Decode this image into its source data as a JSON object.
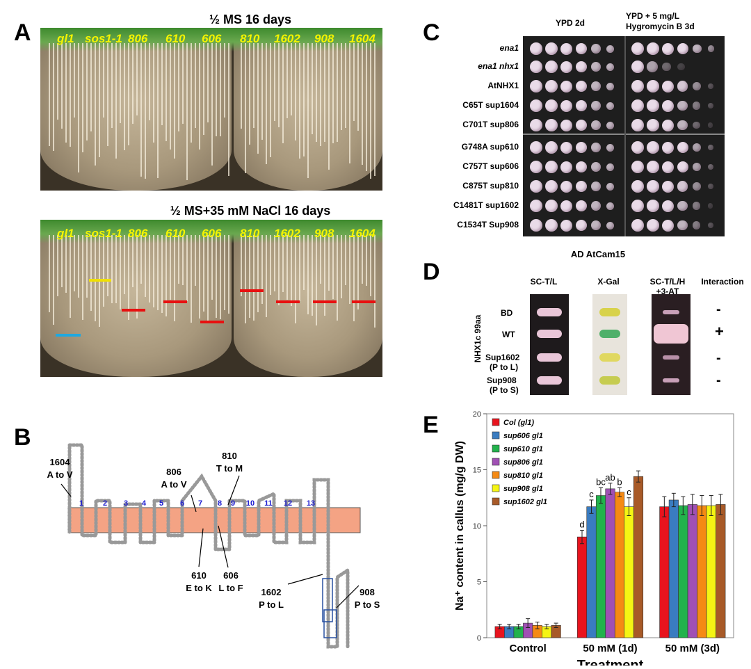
{
  "panelA": {
    "letter": "A",
    "title_top": "½ MS 16 days",
    "title_bottom": "½ MS+35 mM NaCl 16 days",
    "genotypes_left": [
      "gl1",
      "sos1-1",
      "806",
      "610",
      "606"
    ],
    "genotypes_right": [
      "810",
      "1602",
      "908",
      "1604"
    ],
    "bar_colors": {
      "yellow": "#f0e000",
      "red": "#e81010",
      "blue": "#1ea8e0"
    }
  },
  "panelB": {
    "letter": "B",
    "tm_numbers": [
      "1",
      "2",
      "3",
      "4",
      "5",
      "6",
      "7",
      "8",
      "9",
      "10",
      "11",
      "12",
      "13"
    ],
    "mutations": [
      {
        "id": "1604",
        "change": "A to V"
      },
      {
        "id": "806",
        "change": "A to V"
      },
      {
        "id": "810",
        "change": "T to M"
      },
      {
        "id": "610",
        "change": "E to K"
      },
      {
        "id": "606",
        "change": "L to F"
      },
      {
        "id": "1602",
        "change": "P to L"
      },
      {
        "id": "908",
        "change": "P to S"
      }
    ],
    "membrane_color": "#f4a384"
  },
  "panelC": {
    "letter": "C",
    "col1": "YPD 2d",
    "col2_line1": "YPD + 5 mg/L",
    "col2_line2": "Hygromycin B 3d",
    "strains": [
      "ena1",
      "ena1 nhx1",
      "AtNHX1",
      "C65T sup1604",
      "C701T sup806",
      "G748A sup610",
      "C757T sup606",
      "C875T sup810",
      "C1481T sup1602",
      "C1534T Sup908"
    ]
  },
  "panelD": {
    "letter": "D",
    "top": "AD AtCam15",
    "side": "NHX1c 99aa",
    "cols": [
      "SC-T/L",
      "X-Gal",
      "SC-T/L/H",
      "+3-AT",
      "Interaction"
    ],
    "rows": [
      "BD",
      "WT",
      "Sup1602",
      "(P to L)",
      "Sup908",
      "(P to S)"
    ],
    "interaction": [
      "-",
      "+",
      "-",
      "-"
    ]
  },
  "panelE": {
    "letter": "E",
    "chart_data": {
      "type": "bar",
      "categories": [
        "Control",
        "50 mM (1d)",
        "50 mM (3d)"
      ],
      "xlabel": "Treatment",
      "ylabel": "Na⁺ content in callus (mg/g DW)",
      "ylim": [
        0,
        20
      ],
      "yticks": [
        0,
        5,
        10,
        15,
        20
      ],
      "legend_position": "top-left",
      "series": [
        {
          "name": "Col (gl1)",
          "color": "#e8141e",
          "values": [
            1.0,
            9.0,
            11.7
          ],
          "errors": [
            0.2,
            0.6,
            0.9
          ]
        },
        {
          "name": "sup606 gl1",
          "color": "#3a7cc0",
          "values": [
            1.0,
            11.7,
            12.3
          ],
          "errors": [
            0.2,
            0.6,
            0.6
          ]
        },
        {
          "name": "sup610 gl1",
          "color": "#22b24c",
          "values": [
            1.0,
            12.7,
            11.8
          ],
          "errors": [
            0.2,
            0.7,
            0.8
          ]
        },
        {
          "name": "sup806 gl1",
          "color": "#a050b4",
          "values": [
            1.3,
            13.3,
            11.9
          ],
          "errors": [
            0.4,
            0.5,
            0.9
          ]
        },
        {
          "name": "sup810 gl1",
          "color": "#f58a14",
          "values": [
            1.1,
            13.0,
            11.8
          ],
          "errors": [
            0.3,
            0.4,
            0.9
          ]
        },
        {
          "name": "sup908 gl1",
          "color": "#f5f514",
          "values": [
            1.0,
            11.7,
            11.8
          ],
          "errors": [
            0.2,
            0.8,
            0.9
          ]
        },
        {
          "name": "sup1602 gl1",
          "color": "#a85a28",
          "values": [
            1.1,
            14.4,
            11.9
          ],
          "errors": [
            0.2,
            0.5,
            0.9
          ]
        }
      ],
      "annotations_1d": [
        "d",
        "c",
        "bc",
        "ab",
        "b",
        "c",
        ""
      ]
    }
  }
}
